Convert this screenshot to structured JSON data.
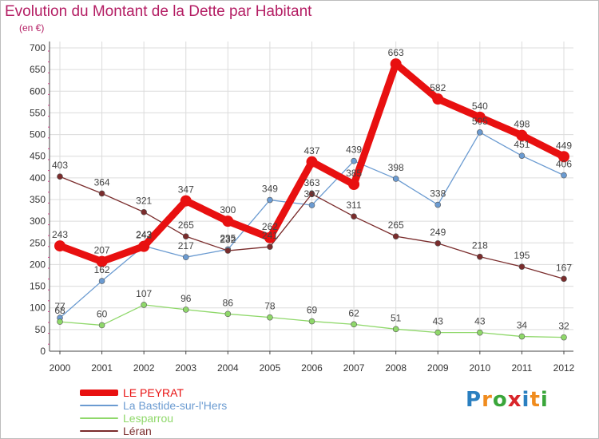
{
  "title": "Evolution du Montant de la Dette par Habitant",
  "unit": "(en €)",
  "logo": {
    "text": "Proxiti",
    "letter_colors": [
      "#2a7fc0",
      "#f08c1e",
      "#3aa63a",
      "#d9252a",
      "#2a7fc0",
      "#f08c1e",
      "#3aa63a"
    ]
  },
  "chart_data": {
    "type": "line",
    "x": [
      "2000",
      "2001",
      "2002",
      "2003",
      "2004",
      "2005",
      "2006",
      "2007",
      "2008",
      "2009",
      "2010",
      "2011",
      "2012"
    ],
    "ylim": [
      0,
      700
    ],
    "yticks": [
      0,
      50,
      100,
      150,
      200,
      250,
      300,
      350,
      400,
      450,
      500,
      550,
      600,
      650,
      700
    ],
    "grid": true,
    "legend_position": "bottom-left",
    "series": [
      {
        "name": "LE PEYRAT",
        "color": "#e81010",
        "values": [
          243,
          207,
          242,
          347,
          300,
          262,
          437,
          385,
          663,
          582,
          540,
          498,
          449
        ]
      },
      {
        "name": "La Bastide-sur-l'Hers",
        "color": "#6b9bd1",
        "values": [
          77,
          162,
          243,
          217,
          235,
          349,
          337,
          439,
          398,
          338,
          505,
          451,
          406
        ]
      },
      {
        "name": "Lesparrou",
        "color": "#8fd86a",
        "values": [
          68,
          60,
          107,
          96,
          86,
          78,
          69,
          62,
          51,
          43,
          43,
          34,
          32
        ]
      },
      {
        "name": "Léran",
        "color": "#7a2c2c",
        "values": [
          403,
          364,
          321,
          265,
          232,
          241,
          363,
          311,
          265,
          249,
          218,
          195,
          167
        ]
      }
    ]
  }
}
